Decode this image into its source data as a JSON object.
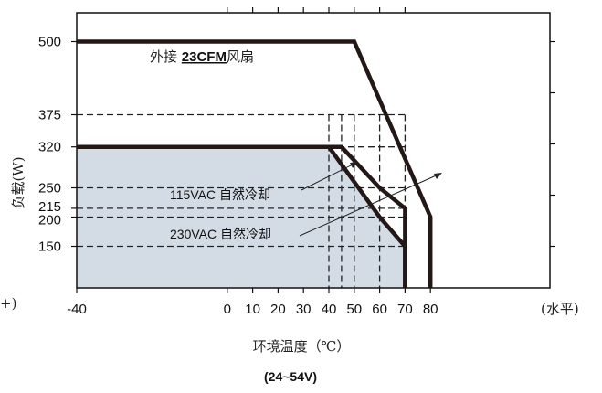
{
  "chart_data": {
    "type": "area",
    "title": "",
    "subtitle": "(24~54V)",
    "xlabel": "环境温度（℃）",
    "ylabel": "负载(W)",
    "x_unit_label": "(水平)",
    "y_unit_label_left": "+)",
    "xlim": [
      -40,
      80
    ],
    "ylim": [
      0,
      500
    ],
    "x_ticks": [
      -40,
      0,
      10,
      20,
      30,
      40,
      50,
      60,
      70,
      80
    ],
    "x_tick_labels": [
      "-40",
      "0",
      "10",
      "20",
      "30",
      "40",
      "50",
      "60",
      "70",
      "80"
    ],
    "y_ticks": [
      150,
      200,
      215,
      250,
      320,
      375,
      500
    ],
    "y_tick_labels": [
      "150",
      "200",
      "215",
      "250",
      "320",
      "375",
      "500"
    ],
    "series": [
      {
        "name": "外接 23CFM风扇",
        "x": [
          -40,
          50,
          80,
          80
        ],
        "y": [
          500,
          500,
          200,
          0
        ]
      },
      {
        "name": "115VAC 自然冷却",
        "x": [
          -40,
          45,
          60,
          70,
          70
        ],
        "y": [
          320,
          320,
          250,
          215,
          0
        ]
      },
      {
        "name": "230VAC 自然冷却",
        "x": [
          -40,
          40,
          60,
          70,
          70
        ],
        "y": [
          320,
          320,
          200,
          150,
          0
        ]
      }
    ],
    "shaded_series": "230VAC 自然冷却",
    "dashed_h": [
      375,
      320,
      250,
      215,
      200,
      150
    ],
    "dashed_v": [
      40,
      45,
      50,
      60,
      70
    ],
    "annotations": [
      {
        "prefix": "外接 ",
        "underlined": "23CFM",
        "suffix": "风扇"
      },
      {
        "text": "115VAC 自然冷却"
      },
      {
        "text": "230VAC 自然冷却"
      }
    ],
    "colors": {
      "fill": "#d3dbe5",
      "line": "#231815",
      "axis": "#111111"
    },
    "grid": false,
    "legend": "none"
  }
}
